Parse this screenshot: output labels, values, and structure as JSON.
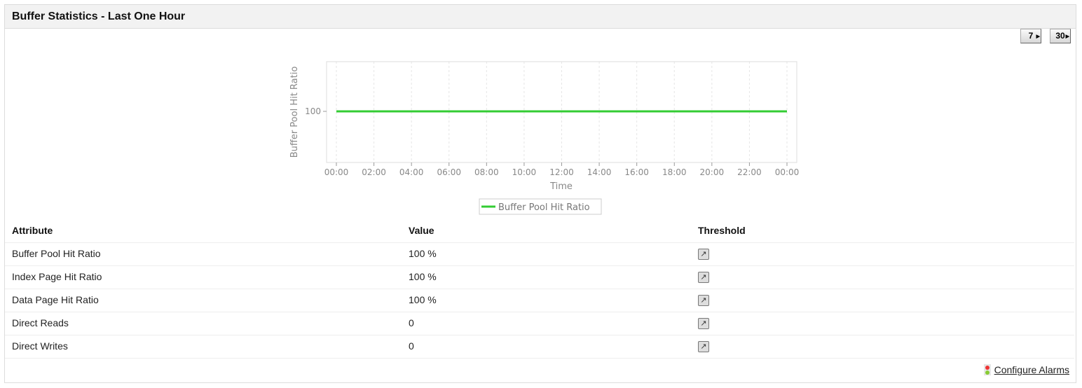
{
  "panel": {
    "title": "Buffer Statistics - Last One Hour",
    "period_buttons": [
      "7",
      "30"
    ]
  },
  "chart_data": {
    "type": "line",
    "xlabel": "Time",
    "ylabel": "Buffer Pool Hit Ratio",
    "x_ticks": [
      "00:00",
      "02:00",
      "04:00",
      "06:00",
      "08:00",
      "10:00",
      "12:00",
      "14:00",
      "16:00",
      "18:00",
      "20:00",
      "22:00",
      "00:00"
    ],
    "y_ticks": [
      100
    ],
    "grid": true,
    "legend_placement": "bottom",
    "series": [
      {
        "name": "Buffer Pool Hit Ratio",
        "color": "#33cc33",
        "values": [
          100,
          100,
          100,
          100,
          100,
          100,
          100,
          100,
          100,
          100,
          100,
          100,
          100
        ]
      }
    ]
  },
  "table": {
    "headers": [
      "Attribute",
      "Value",
      "Threshold"
    ],
    "rows": [
      {
        "attribute": "Buffer Pool Hit Ratio",
        "value": "100 %"
      },
      {
        "attribute": "Index Page Hit Ratio",
        "value": "100 %"
      },
      {
        "attribute": "Data Page Hit Ratio",
        "value": "100 %"
      },
      {
        "attribute": "Direct Reads",
        "value": "0"
      },
      {
        "attribute": "Direct Writes",
        "value": "0"
      }
    ]
  },
  "footer": {
    "configure_alarms": "Configure Alarms"
  }
}
